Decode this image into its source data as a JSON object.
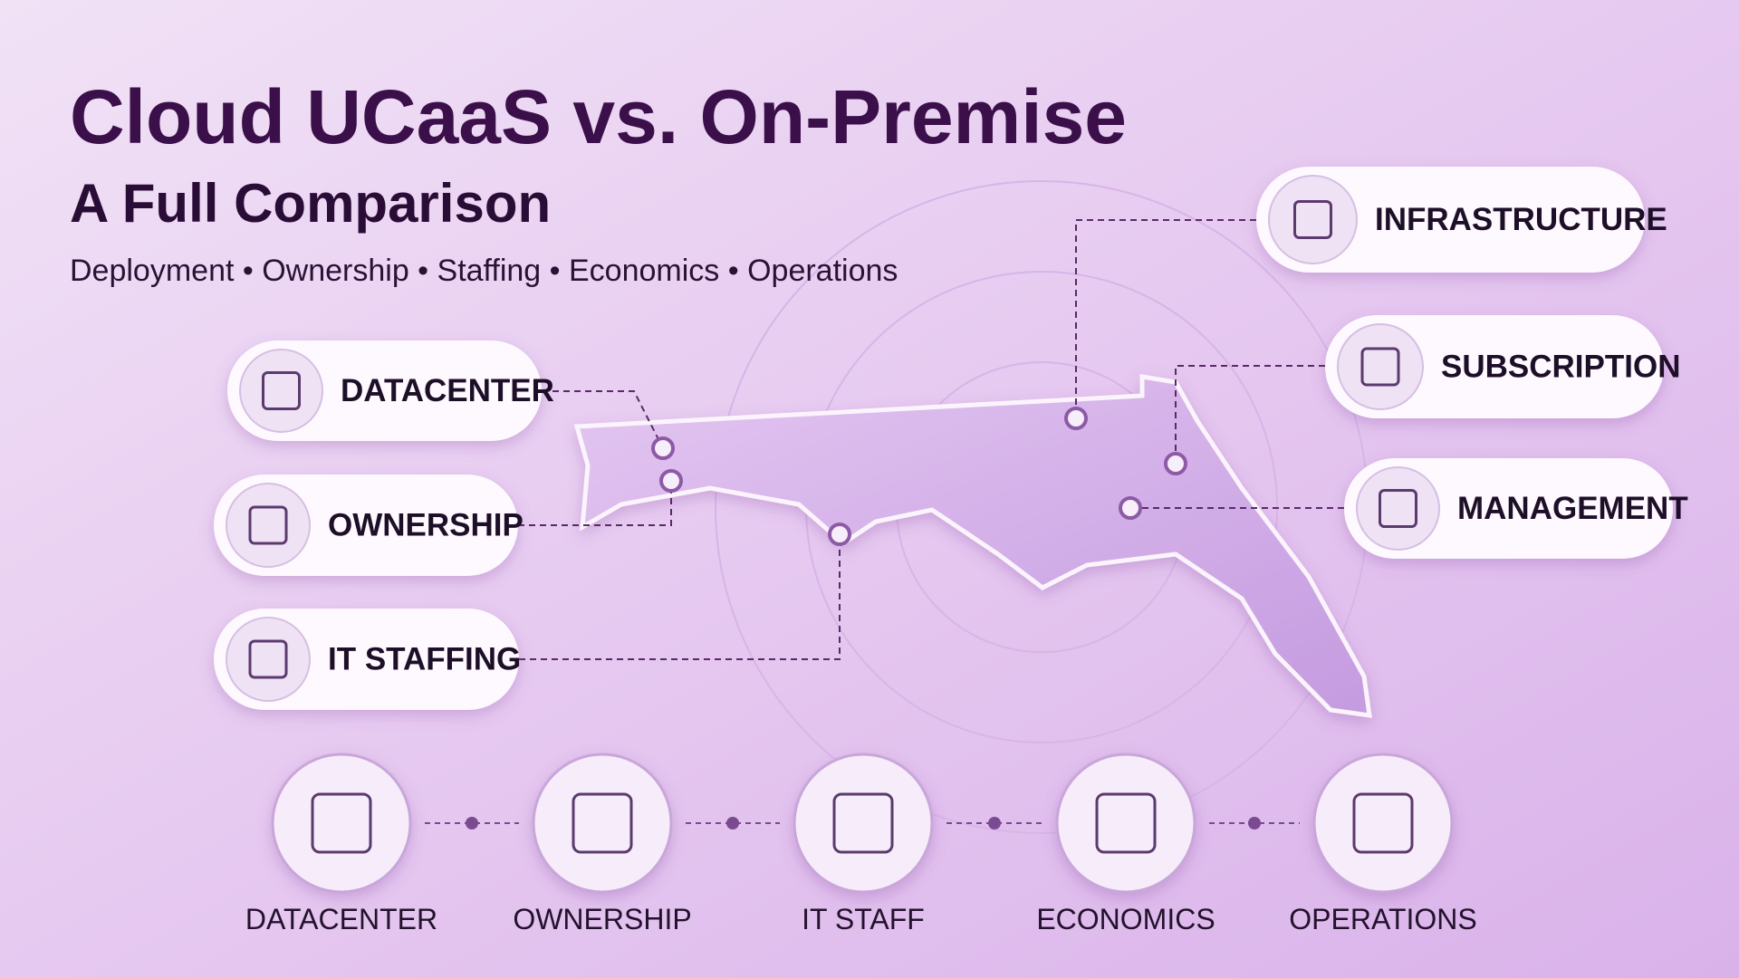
{
  "header": {
    "title": "Cloud UCaaS vs. On-Premise",
    "subtitle": "A Full Comparison",
    "tagline": "Deployment • Ownership • Staffing • Economics • Operations"
  },
  "left_callouts": [
    "DATACENTER",
    "OWNERSHIP",
    "IT STAFFING"
  ],
  "right_callouts": [
    "INFRASTRUCTURE",
    "SUBSCRIPTION",
    "MANAGEMENT"
  ],
  "bottom_steps": [
    "DATACENTER",
    "OWNERSHIP",
    "IT STAFF",
    "ECONOMICS",
    "OPERATIONS"
  ]
}
